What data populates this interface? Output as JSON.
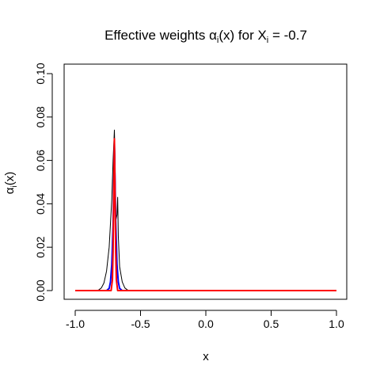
{
  "chart_data": {
    "type": "line",
    "title": {
      "prefix": "Effective weights ",
      "alpha": "α",
      "alpha_sub": "i",
      "alpha_arg": "(x)",
      "middle": " for X",
      "x_sub": "i",
      "suffix": " = -0.7"
    },
    "xlabel": "x",
    "ylabel": {
      "alpha": "α",
      "sub": "i",
      "arg": "(x)"
    },
    "xlim": [
      -1.0,
      1.0
    ],
    "ylim": [
      0.0,
      0.1
    ],
    "xticks": [
      -1.0,
      -0.5,
      0.0,
      0.5,
      1.0
    ],
    "xtick_labels": [
      "-1.0",
      "-0.5",
      "0.0",
      "0.5",
      "1.0"
    ],
    "yticks": [
      0.0,
      0.02,
      0.04,
      0.06,
      0.08,
      0.1
    ],
    "ytick_labels": [
      "0.00",
      "0.02",
      "0.04",
      "0.06",
      "0.08",
      "0.10"
    ],
    "grid": false,
    "series": [
      {
        "color": "#000000",
        "x": [
          -1.0,
          -0.84,
          -0.82,
          -0.8,
          -0.78,
          -0.76,
          -0.74,
          -0.72,
          -0.71,
          -0.7,
          -0.695,
          -0.69,
          -0.68,
          -0.675,
          -0.67,
          -0.66,
          -0.64,
          -0.62,
          -0.6,
          -0.58,
          1.0
        ],
        "y": [
          0.0,
          0.0,
          0.0003,
          0.0012,
          0.0035,
          0.009,
          0.02,
          0.042,
          0.06,
          0.074,
          0.061,
          0.032,
          0.035,
          0.043,
          0.025,
          0.011,
          0.004,
          0.0012,
          0.0003,
          0.0,
          0.0
        ]
      },
      {
        "color": "#0000ff",
        "x": [
          -1.0,
          -0.76,
          -0.74,
          -0.73,
          -0.72,
          -0.71,
          -0.705,
          -0.7,
          -0.695,
          -0.69,
          -0.68,
          -0.67,
          -0.66,
          -0.64,
          1.0
        ],
        "y": [
          0.0,
          0.0,
          0.001,
          0.004,
          0.012,
          0.03,
          0.048,
          0.068,
          0.05,
          0.032,
          0.012,
          0.004,
          0.001,
          0.0,
          0.0
        ]
      },
      {
        "color": "#ff0000",
        "x": [
          -1.0,
          -0.725,
          -0.715,
          -0.71,
          -0.705,
          -0.7,
          -0.695,
          -0.69,
          -0.685,
          -0.675,
          1.0
        ],
        "y": [
          0.0,
          0.0,
          0.005,
          0.018,
          0.045,
          0.07,
          0.045,
          0.018,
          0.005,
          0.0,
          0.0
        ]
      }
    ]
  }
}
